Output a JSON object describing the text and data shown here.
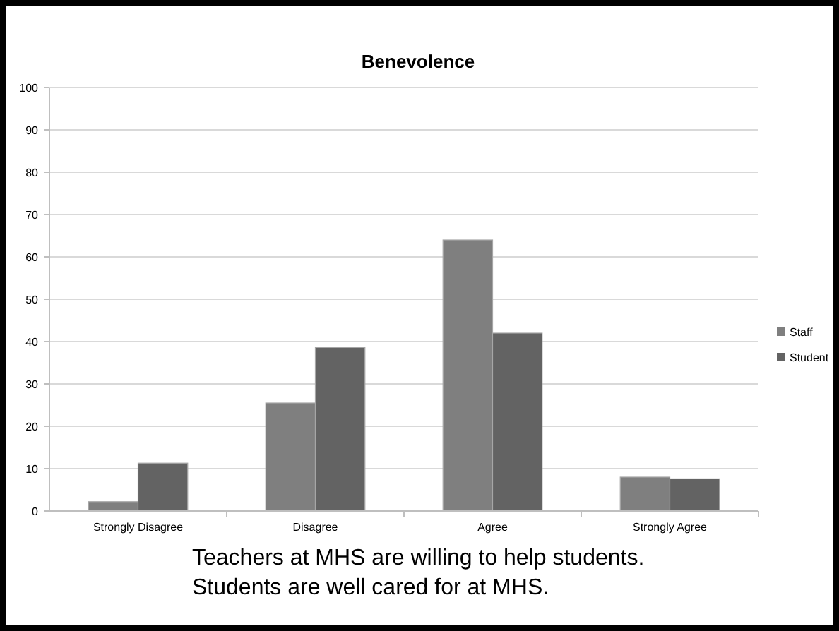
{
  "chart_data": {
    "type": "bar",
    "title": "Benevolence",
    "categories": [
      "Strongly Disagree",
      "Disagree",
      "Agree",
      "Strongly Agree"
    ],
    "series": [
      {
        "name": "Staff",
        "color": "#7f7f7f",
        "values": [
          2.2,
          25.5,
          64,
          8
        ]
      },
      {
        "name": "Student",
        "color": "#636363",
        "values": [
          11.3,
          38.6,
          42,
          7.6
        ]
      }
    ],
    "ylim": [
      0,
      100
    ],
    "yticks": [
      0,
      10,
      20,
      30,
      40,
      50,
      60,
      70,
      80,
      90,
      100
    ],
    "grid": "y",
    "legend": "right",
    "annotations": [
      "Teachers at MHS are willing to help students.",
      "Students are well cared for at MHS."
    ]
  }
}
